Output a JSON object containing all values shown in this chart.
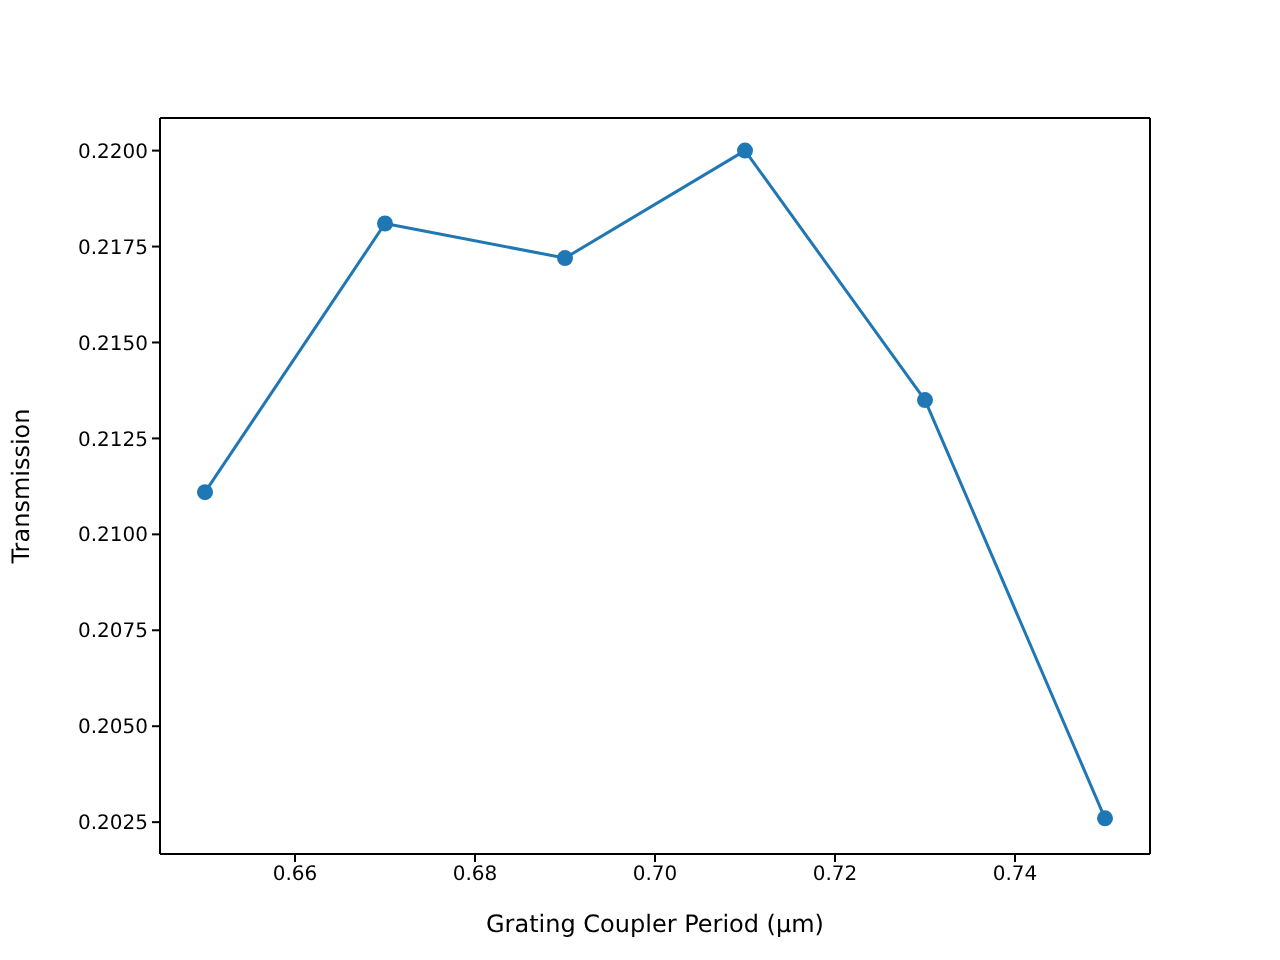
{
  "chart_data": {
    "type": "line",
    "xlabel": "Grating Coupler Period (µm)",
    "ylabel": "Transmission",
    "x": [
      0.65,
      0.67,
      0.69,
      0.71,
      0.73,
      0.75
    ],
    "series": [
      {
        "color": "#1f77b4",
        "values": [
          0.2111,
          0.2181,
          0.2172,
          0.22,
          0.2135,
          0.2026
        ]
      }
    ],
    "xlim": [
      0.645,
      0.755
    ],
    "xticks": [
      {
        "value": 0.66,
        "label": "0.66"
      },
      {
        "value": 0.68,
        "label": "0.68"
      },
      {
        "value": 0.7,
        "label": "0.70"
      },
      {
        "value": 0.72,
        "label": "0.72"
      },
      {
        "value": 0.74,
        "label": "0.74"
      }
    ],
    "ylim": [
      0.20167,
      0.22085
    ],
    "yticks": [
      {
        "value": 0.2025,
        "label": "0.2025"
      },
      {
        "value": 0.205,
        "label": "0.2050"
      },
      {
        "value": 0.2075,
        "label": "0.2075"
      },
      {
        "value": 0.21,
        "label": "0.2100"
      },
      {
        "value": 0.2125,
        "label": "0.2125"
      },
      {
        "value": 0.215,
        "label": "0.2150"
      },
      {
        "value": 0.2175,
        "label": "0.2175"
      },
      {
        "value": 0.22,
        "label": "0.2200"
      }
    ],
    "marker": "circle",
    "line_style": "solid",
    "grid": false
  }
}
